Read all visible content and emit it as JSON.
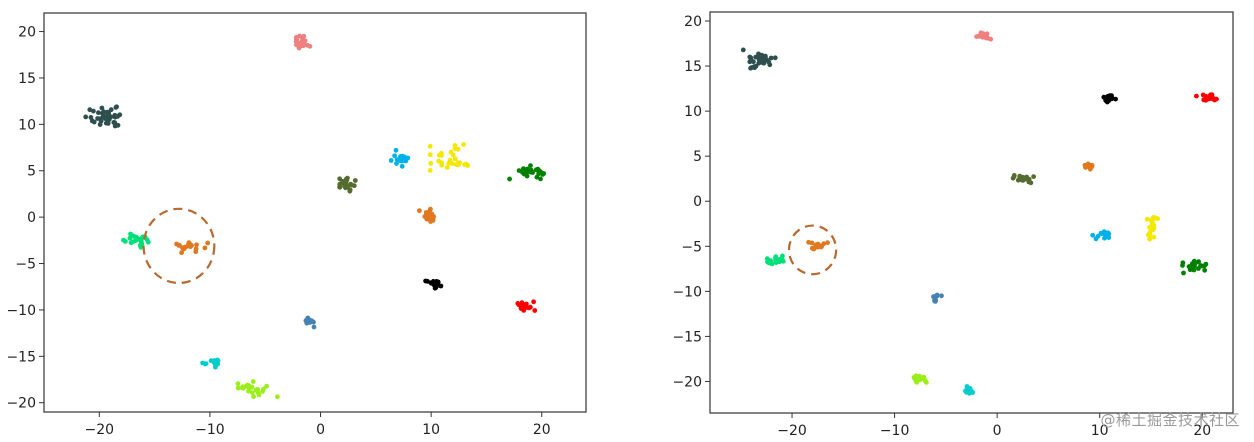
{
  "watermark": "@稀土掘金技术社区",
  "chart_data": [
    {
      "type": "scatter",
      "title": "",
      "xlabel": "",
      "ylabel": "",
      "xlim": [
        -25,
        24
      ],
      "ylim": [
        -21,
        22
      ],
      "xticks": [
        -20,
        -10,
        0,
        10,
        20
      ],
      "yticks": [
        -20,
        -15,
        -10,
        -5,
        0,
        5,
        10,
        15,
        20
      ],
      "grid": false,
      "highlight": {
        "x": -12.8,
        "y": -3.1,
        "rx": 3.2,
        "ry": 4.0,
        "color": "#b8692f"
      },
      "clusters": [
        {
          "color": "#2f4f4f",
          "center": [
            -19.3,
            10.8
          ],
          "spread": [
            1.8,
            1.1
          ],
          "count": 42
        },
        {
          "color": "#f08080",
          "center": [
            -1.7,
            18.9
          ],
          "spread": [
            0.9,
            0.6
          ],
          "count": 22
        },
        {
          "color": "#556b2f",
          "center": [
            2.2,
            3.5
          ],
          "spread": [
            1.0,
            1.0
          ],
          "count": 22
        },
        {
          "color": "#00b0e8",
          "center": [
            7.2,
            6.2
          ],
          "spread": [
            0.9,
            0.8
          ],
          "count": 20
        },
        {
          "color": "#f5e800",
          "center": [
            11.6,
            6.4
          ],
          "spread": [
            1.8,
            1.3
          ],
          "count": 28
        },
        {
          "color": "#008000",
          "center": [
            19.0,
            4.8
          ],
          "spread": [
            1.6,
            0.7
          ],
          "count": 24
        },
        {
          "color": "#00e07a",
          "center": [
            -16.6,
            -2.6
          ],
          "spread": [
            1.1,
            0.9
          ],
          "count": 24
        },
        {
          "color": "#e07820",
          "center": [
            -11.9,
            -3.2
          ],
          "spread": [
            1.3,
            0.5
          ],
          "count": 22
        },
        {
          "color": "#e07820",
          "center": [
            9.7,
            0.0
          ],
          "spread": [
            0.8,
            0.9
          ],
          "count": 16
        },
        {
          "color": "#000000",
          "center": [
            10.3,
            -7.1
          ],
          "spread": [
            0.8,
            0.5
          ],
          "count": 20
        },
        {
          "color": "#ff0000",
          "center": [
            18.5,
            -9.6
          ],
          "spread": [
            0.8,
            0.7
          ],
          "count": 20
        },
        {
          "color": "#4682b4",
          "center": [
            -1.0,
            -11.3
          ],
          "spread": [
            0.8,
            0.4
          ],
          "count": 12
        },
        {
          "color": "#00cccc",
          "center": [
            -9.5,
            -15.6
          ],
          "spread": [
            0.8,
            0.5
          ],
          "count": 16
        },
        {
          "color": "#9aee1a",
          "center": [
            -6.3,
            -18.5
          ],
          "spread": [
            1.3,
            0.7
          ],
          "count": 24
        }
      ]
    },
    {
      "type": "scatter",
      "title": "",
      "xlabel": "",
      "ylabel": "",
      "xlim": [
        -28,
        23
      ],
      "ylim": [
        -23.5,
        21
      ],
      "xticks": [
        -20,
        -10,
        0,
        10,
        20
      ],
      "yticks": [
        -20,
        -15,
        -10,
        -5,
        0,
        5,
        10,
        15,
        20
      ],
      "grid": false,
      "highlight": {
        "x": -18.0,
        "y": -5.4,
        "rx": 2.3,
        "ry": 2.7,
        "color": "#b8692f"
      },
      "clusters": [
        {
          "color": "#2f4f4f",
          "center": [
            -23.2,
            15.5
          ],
          "spread": [
            1.4,
            0.9
          ],
          "count": 32
        },
        {
          "color": "#f08080",
          "center": [
            -1.4,
            18.3
          ],
          "spread": [
            0.6,
            0.3
          ],
          "count": 16
        },
        {
          "color": "#000000",
          "center": [
            10.9,
            11.4
          ],
          "spread": [
            0.5,
            0.4
          ],
          "count": 18
        },
        {
          "color": "#ff0000",
          "center": [
            20.7,
            11.5
          ],
          "spread": [
            0.7,
            0.4
          ],
          "count": 18
        },
        {
          "color": "#556b2f",
          "center": [
            2.4,
            2.5
          ],
          "spread": [
            1.0,
            0.5
          ],
          "count": 18
        },
        {
          "color": "#e07820",
          "center": [
            9.1,
            3.8
          ],
          "spread": [
            0.5,
            0.3
          ],
          "count": 12
        },
        {
          "color": "#f5e800",
          "center": [
            15.0,
            -2.8
          ],
          "spread": [
            0.6,
            1.5
          ],
          "count": 22
        },
        {
          "color": "#00b0e8",
          "center": [
            10.3,
            -3.8
          ],
          "spread": [
            0.6,
            0.5
          ],
          "count": 18
        },
        {
          "color": "#008000",
          "center": [
            19.3,
            -7.3
          ],
          "spread": [
            1.2,
            0.8
          ],
          "count": 22
        },
        {
          "color": "#00e07a",
          "center": [
            -21.6,
            -6.5
          ],
          "spread": [
            1.0,
            0.5
          ],
          "count": 22
        },
        {
          "color": "#e07820",
          "center": [
            -17.5,
            -4.9
          ],
          "spread": [
            0.8,
            0.4
          ],
          "count": 14
        },
        {
          "color": "#4682b4",
          "center": [
            -5.9,
            -10.7
          ],
          "spread": [
            0.4,
            0.4
          ],
          "count": 10
        },
        {
          "color": "#9aee1a",
          "center": [
            -7.7,
            -19.8
          ],
          "spread": [
            0.8,
            0.5
          ],
          "count": 18
        },
        {
          "color": "#00cccc",
          "center": [
            -2.8,
            -21.0
          ],
          "spread": [
            0.4,
            0.5
          ],
          "count": 14
        }
      ]
    }
  ]
}
